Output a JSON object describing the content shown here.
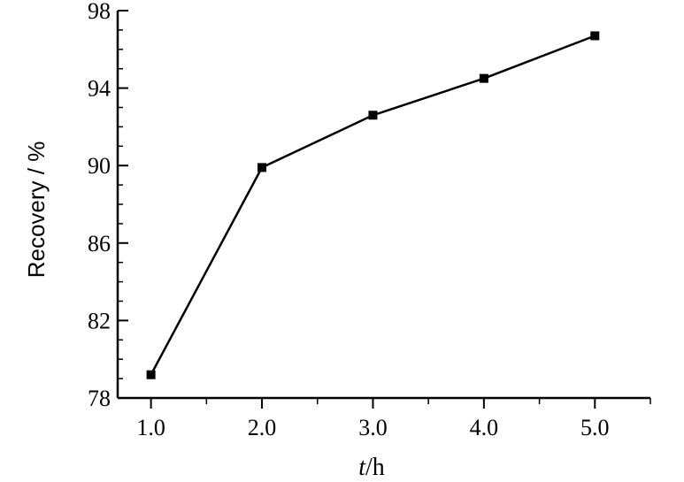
{
  "chart_data": {
    "type": "line",
    "x": [
      1.0,
      2.0,
      3.0,
      4.0,
      5.0
    ],
    "series": [
      {
        "values": [
          79.2,
          89.9,
          92.6,
          94.5,
          96.7
        ]
      }
    ],
    "xlabel_italic": "t",
    "xlabel_rest": "/h",
    "ylabel": "Recovery / %",
    "xlim": [
      0.7,
      5.5
    ],
    "ylim": [
      78,
      98
    ],
    "xticks": [
      1.0,
      2.0,
      3.0,
      4.0,
      5.0
    ],
    "xtick_labels": [
      "1.0",
      "2.0",
      "3.0",
      "4.0",
      "5.0"
    ],
    "yticks": [
      78,
      82,
      86,
      90,
      94,
      98
    ],
    "ytick_labels": [
      "78",
      "82",
      "86",
      "90",
      "94",
      "98"
    ],
    "x_minor_step": 0.5,
    "y_minor_step": 1,
    "grid": false,
    "marker": "square",
    "line_color": "#000000"
  }
}
